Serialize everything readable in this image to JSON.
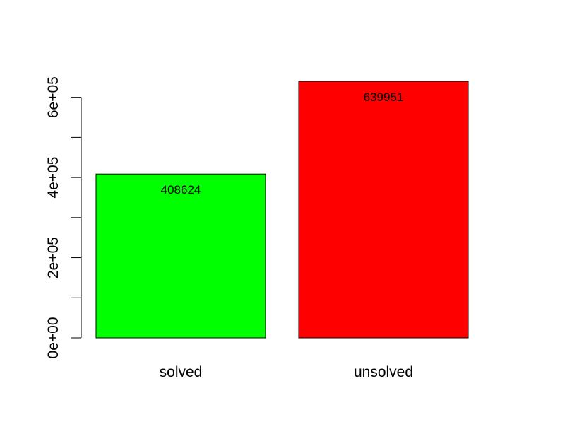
{
  "chart_data": {
    "type": "bar",
    "categories": [
      "solved",
      "unsolved"
    ],
    "values": [
      408624,
      639951
    ],
    "data_labels": [
      "408624",
      "639951"
    ],
    "colors": [
      "#00ff00",
      "#ff0000"
    ],
    "yticks": [
      {
        "value": 0,
        "label": "0e+00"
      },
      {
        "value": 200000,
        "label": "2e+05"
      },
      {
        "value": 400000,
        "label": "4e+05"
      },
      {
        "value": 600000,
        "label": "6e+05"
      }
    ],
    "yminor": [
      100000,
      300000,
      500000
    ],
    "ylim": [
      0,
      639951
    ],
    "title": "",
    "xlabel": "",
    "ylabel": "",
    "grid": false,
    "legend": "none"
  }
}
